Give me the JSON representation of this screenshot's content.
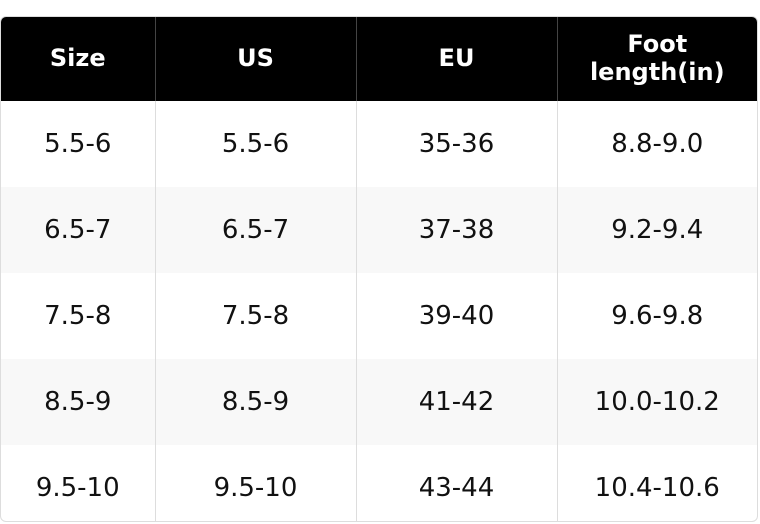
{
  "table": {
    "header": [
      "Size",
      "US",
      "EU",
      "Foot length(in)"
    ],
    "rows": [
      [
        "5.5-6",
        "5.5-6",
        "35-36",
        "8.8-9.0"
      ],
      [
        "6.5-7",
        "6.5-7",
        "37-38",
        "9.2-9.4"
      ],
      [
        "7.5-8",
        "7.5-8",
        "39-40",
        "9.6-9.8"
      ],
      [
        "8.5-9",
        "8.5-9",
        "41-42",
        "10.0-10.2"
      ],
      [
        "9.5-10",
        "9.5-10",
        "43-44",
        "10.4-10.6"
      ]
    ]
  }
}
